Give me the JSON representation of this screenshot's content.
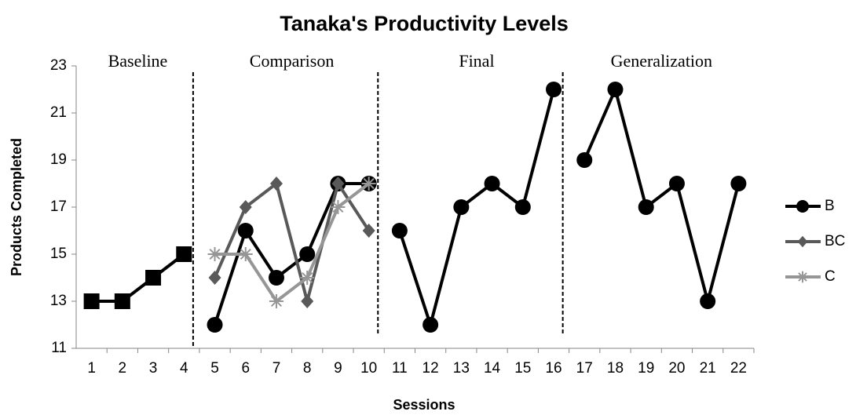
{
  "chart_data": {
    "type": "line",
    "title": "Tanaka's Productivity Levels",
    "x_label": "Sessions",
    "y_label": "Products Completed",
    "categories": [
      "1",
      "2",
      "3",
      "4",
      "5",
      "6",
      "7",
      "8",
      "9",
      "10",
      "11",
      "12",
      "13",
      "14",
      "15",
      "16",
      "17",
      "18",
      "19",
      "20",
      "21",
      "22"
    ],
    "phases": [
      {
        "label": "Baseline",
        "first": "1",
        "last": "4"
      },
      {
        "label": "Comparison",
        "first": "5",
        "last": "10"
      },
      {
        "label": "Final",
        "first": "11",
        "last": "16"
      },
      {
        "label": "Generalization",
        "first": "17",
        "last": "22"
      }
    ],
    "ylim": [
      11,
      23
    ],
    "yticks": [
      11,
      13,
      15,
      17,
      19,
      21,
      23
    ],
    "series": [
      {
        "color": "#000000",
        "marker": "square",
        "values": [
          13,
          13,
          14,
          15,
          null,
          null,
          null,
          null,
          null,
          null,
          null,
          null,
          null,
          null,
          null,
          null,
          null,
          null,
          null,
          null,
          null,
          null
        ]
      },
      {
        "name": "B",
        "color": "#000000",
        "marker": "circle",
        "values": [
          null,
          null,
          null,
          null,
          12,
          16,
          14,
          15,
          18,
          18,
          16,
          12,
          17,
          18,
          17,
          22,
          19,
          22,
          17,
          18,
          13,
          18
        ]
      },
      {
        "name": "BC",
        "color": "#595959",
        "marker": "diamond",
        "values": [
          null,
          null,
          null,
          null,
          14,
          17,
          18,
          13,
          18,
          16,
          null,
          null,
          null,
          null,
          null,
          null,
          null,
          null,
          null,
          null,
          null,
          null
        ]
      },
      {
        "name": "C",
        "color": "#969696",
        "marker": "star",
        "values": [
          null,
          null,
          null,
          null,
          15,
          15,
          13,
          14,
          17,
          18,
          null,
          null,
          null,
          null,
          null,
          null,
          null,
          null,
          null,
          null,
          null,
          null
        ]
      }
    ]
  }
}
